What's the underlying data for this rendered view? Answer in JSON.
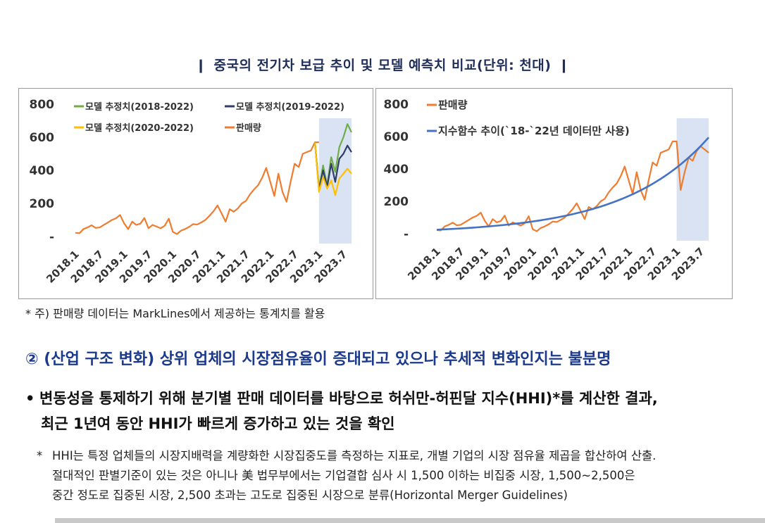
{
  "page": {
    "title": "중국의 전기차 보급 추이 및 모델 예측치 비교(단위: 천대)",
    "title_marker": "❙",
    "footnote": "* 주) 판매량 데이터는 MarkLines에서 제공하는 통계치를 활용",
    "section_heading": "② (산업 구조 변화) 상위 업체의 시장점유율이 증대되고 있으나 추세적 변화인지는 불분명",
    "bullet_mark": "•",
    "bullet_line1": "변동성을 통제하기 위해 분기별 판매 데이터를 바탕으로 허쉬만-허핀달 지수(HHI)*를 계산한 결과,",
    "bullet_line2": "최근 1년여 동안 HHI가 빠르게 증가하고 있는 것을 확인",
    "note_star": "*",
    "note_line1": "HHI는 특정 업체들의 시장지배력을 계량화한 시장집중도를 측정하는 지표로, 개별 기업의 시장 점유율 제곱을 합산하여 산출.",
    "note_line2": "절대적인 판별기준이 있는 것은 아니나 美 법무부에서는 기업결합 심사 시 1,500 이하는 비집중 시장, 1,500~2,500은",
    "note_line3": "중간 정도로 집중된 시장, 2,500 초과는 고도로 집중된 시장으로 분류(Horizontal Merger Guidelines)"
  },
  "chart_data": [
    {
      "type": "line",
      "title": "",
      "xlabel": "",
      "ylabel": "",
      "ylim": [
        0,
        800
      ],
      "yticks": [
        "-",
        "200",
        "400",
        "600",
        "800"
      ],
      "xticks": [
        "2018.1",
        "2018.7",
        "2019.1",
        "2019.7",
        "2020.1",
        "2020.7",
        "2021.1",
        "2021.7",
        "2022.1",
        "2022.7",
        "2023.1",
        "2023.7"
      ],
      "highlight_months": [
        "2023.1",
        "2023.9"
      ],
      "highlight_color": "#dae3f3",
      "legend": [
        {
          "name": "모델 추정치(2018-2022)",
          "color": "#70ad47"
        },
        {
          "name": "모델 추정치(2019-2022)",
          "color": "#2f3d6b"
        },
        {
          "name": "모델 추정치(2020-2022)",
          "color": "#ffc000"
        },
        {
          "name": "판매량",
          "color": "#ed7d31"
        }
      ],
      "series": [
        {
          "name": "판매량",
          "color": "#ed7d31",
          "start": "2018.1",
          "values": [
            22,
            20,
            45,
            55,
            68,
            52,
            55,
            70,
            85,
            100,
            110,
            130,
            80,
            45,
            90,
            70,
            78,
            112,
            50,
            70,
            60,
            50,
            65,
            108,
            28,
            15,
            35,
            45,
            58,
            75,
            72,
            85,
            100,
            125,
            152,
            188,
            140,
            90,
            165,
            150,
            170,
            200,
            215,
            255,
            285,
            310,
            355,
            415,
            330,
            245,
            380,
            270,
            210,
            330,
            440,
            420,
            500,
            510,
            520,
            570,
            570
          ]
        },
        {
          "name": "모델 추정치(2018-2022)",
          "color": "#70ad47",
          "start": "2022.12",
          "values": [
            570,
            290,
            430,
            310,
            480,
            390,
            540,
            600,
            680,
            630
          ]
        },
        {
          "name": "모델 추정치(2019-2022)",
          "color": "#2f3d6b",
          "start": "2022.12",
          "values": [
            570,
            280,
            400,
            300,
            440,
            330,
            470,
            500,
            550,
            510
          ]
        },
        {
          "name": "모델 추정치(2020-2022)",
          "color": "#ffc000",
          "start": "2022.12",
          "values": [
            570,
            270,
            360,
            290,
            340,
            250,
            350,
            380,
            410,
            380
          ]
        }
      ]
    },
    {
      "type": "line",
      "title": "",
      "xlabel": "",
      "ylabel": "",
      "ylim": [
        0,
        800
      ],
      "yticks": [
        "-",
        "200",
        "400",
        "600",
        "800"
      ],
      "xticks": [
        "2018.1",
        "2018.7",
        "2019.1",
        "2019.7",
        "2020.1",
        "2020.7",
        "2021.1",
        "2021.7",
        "2022.1",
        "2022.7",
        "2023.1",
        "2023.7"
      ],
      "highlight_months": [
        "2023.1",
        "2023.9"
      ],
      "highlight_color": "#dae3f3",
      "legend": [
        {
          "name": "판매량",
          "color": "#ed7d31"
        },
        {
          "name": "지수함수 추이(`18-`22년 데이터만 사용)",
          "color": "#4472c4"
        }
      ],
      "series": [
        {
          "name": "판매량",
          "color": "#ed7d31",
          "start": "2018.1",
          "values": [
            22,
            20,
            45,
            55,
            68,
            52,
            55,
            70,
            85,
            100,
            110,
            130,
            80,
            45,
            90,
            70,
            78,
            112,
            50,
            70,
            60,
            50,
            65,
            108,
            28,
            15,
            35,
            45,
            58,
            75,
            72,
            85,
            100,
            125,
            152,
            188,
            140,
            90,
            165,
            150,
            170,
            200,
            215,
            255,
            285,
            310,
            355,
            415,
            330,
            245,
            380,
            270,
            210,
            330,
            440,
            420,
            500,
            510,
            520,
            570,
            570,
            270,
            380,
            470,
            450,
            510,
            540,
            520,
            500
          ]
        },
        {
          "name": "지수함수 추이(`18-`22년 데이터만 사용)",
          "color": "#4472c4",
          "start": "2018.1",
          "model": {
            "a": 24.5,
            "b": 0.0469
          },
          "count": 69
        }
      ]
    }
  ]
}
